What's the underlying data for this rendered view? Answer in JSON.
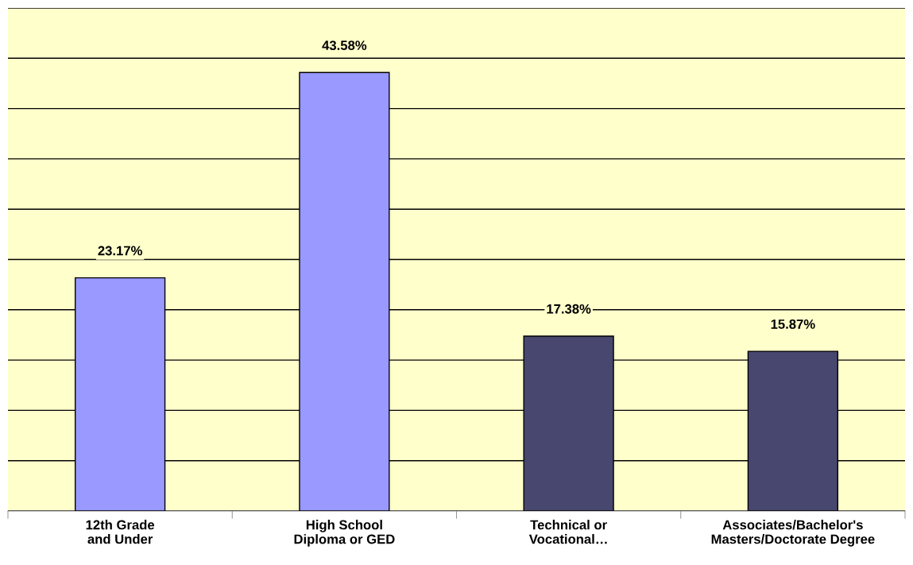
{
  "chart_data": {
    "type": "bar",
    "categories": [
      "12th Grade\nand Under",
      "High School\nDiploma or GED",
      "Technical or\nVocational…",
      "Associates/Bachelor's\nMasters/Doctorate Degree"
    ],
    "values": [
      23.17,
      43.58,
      17.38,
      15.87
    ],
    "value_labels": [
      "23.17%",
      "43.58%",
      "17.38%",
      "15.87%"
    ],
    "colors": [
      "#9999ff",
      "#9999ff",
      "#47476f",
      "#47476f"
    ],
    "ylim": [
      0,
      50
    ],
    "yticks": [
      {
        "value": 0,
        "label": null
      },
      {
        "value": 5,
        "label": null
      },
      {
        "value": 10,
        "label": null
      },
      {
        "value": 15,
        "label": null
      },
      {
        "value": 20,
        "label": null
      },
      {
        "value": 25,
        "label": null
      },
      {
        "value": 30,
        "label": null
      },
      {
        "value": 35,
        "label": null
      },
      {
        "value": 40,
        "label": null
      },
      {
        "value": 45,
        "label": null
      },
      {
        "value": 50,
        "label": null
      }
    ],
    "grid": "y",
    "tick_labels": "x"
  }
}
